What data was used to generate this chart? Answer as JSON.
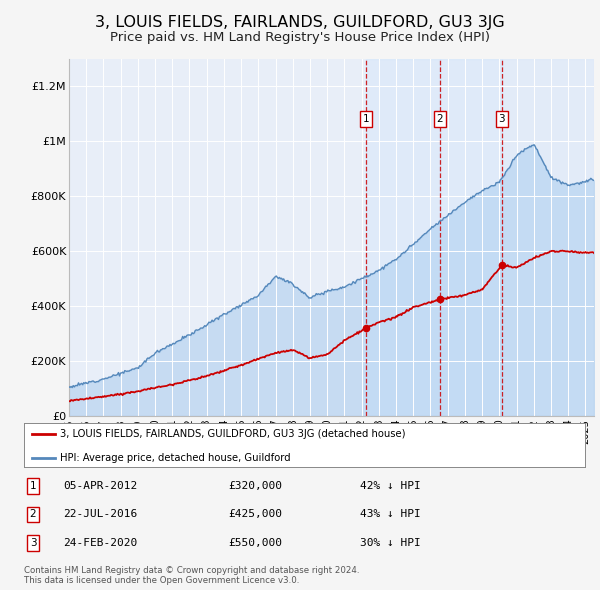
{
  "title": "3, LOUIS FIELDS, FAIRLANDS, GUILDFORD, GU3 3JG",
  "subtitle": "Price paid vs. HM Land Registry's House Price Index (HPI)",
  "title_fontsize": 11.5,
  "subtitle_fontsize": 9.5,
  "ylim": [
    0,
    1300000
  ],
  "yticks": [
    0,
    200000,
    400000,
    600000,
    800000,
    1000000,
    1200000
  ],
  "ytick_labels": [
    "£0",
    "£200K",
    "£400K",
    "£600K",
    "£800K",
    "£1M",
    "£1.2M"
  ],
  "bg_color": "#f5f5f5",
  "plot_bg_color": "#e8eef8",
  "grid_color": "#ffffff",
  "hpi_color": "#5588bb",
  "hpi_fill_color": "#aaccee",
  "sale_color": "#cc0000",
  "dashed_color": "#cc0000",
  "transactions": [
    {
      "date": 2012.27,
      "price": 320000,
      "label": "1"
    },
    {
      "date": 2016.55,
      "price": 425000,
      "label": "2"
    },
    {
      "date": 2020.15,
      "price": 550000,
      "label": "3"
    }
  ],
  "legend_sale_label": "3, LOUIS FIELDS, FAIRLANDS, GUILDFORD, GU3 3JG (detached house)",
  "legend_hpi_label": "HPI: Average price, detached house, Guildford",
  "table_rows": [
    {
      "num": "1",
      "date": "05-APR-2012",
      "price": "£320,000",
      "info": "42% ↓ HPI"
    },
    {
      "num": "2",
      "date": "22-JUL-2016",
      "price": "£425,000",
      "info": "43% ↓ HPI"
    },
    {
      "num": "3",
      "date": "24-FEB-2020",
      "price": "£550,000",
      "info": "30% ↓ HPI"
    }
  ],
  "footer": "Contains HM Land Registry data © Crown copyright and database right 2024.\nThis data is licensed under the Open Government Licence v3.0.",
  "xmin": 1995,
  "xmax": 2025.5,
  "hpi_knots_x": [
    1995,
    1997,
    1999,
    2000,
    2002,
    2004,
    2006,
    2007,
    2008,
    2009,
    2010,
    2011,
    2013,
    2014,
    2016,
    2017,
    2018,
    2019,
    2020,
    2021,
    2022,
    2023,
    2024,
    2025.5
  ],
  "hpi_knots_y": [
    105000,
    135000,
    175000,
    230000,
    295000,
    370000,
    440000,
    510000,
    480000,
    430000,
    455000,
    470000,
    530000,
    570000,
    680000,
    730000,
    780000,
    820000,
    850000,
    950000,
    990000,
    870000,
    840000,
    860000
  ],
  "sale_knots_x": [
    1995,
    1997,
    1999,
    2001,
    2003,
    2005,
    2007,
    2008,
    2009,
    2010,
    2011,
    2012.27,
    2013,
    2014,
    2015,
    2016.55,
    2017,
    2018,
    2019,
    2020.15,
    2021,
    2022,
    2023,
    2024,
    2025
  ],
  "sale_knots_y": [
    55000,
    70000,
    90000,
    115000,
    145000,
    185000,
    230000,
    240000,
    210000,
    225000,
    275000,
    320000,
    340000,
    360000,
    395000,
    425000,
    430000,
    440000,
    460000,
    550000,
    540000,
    575000,
    600000,
    600000,
    595000
  ]
}
